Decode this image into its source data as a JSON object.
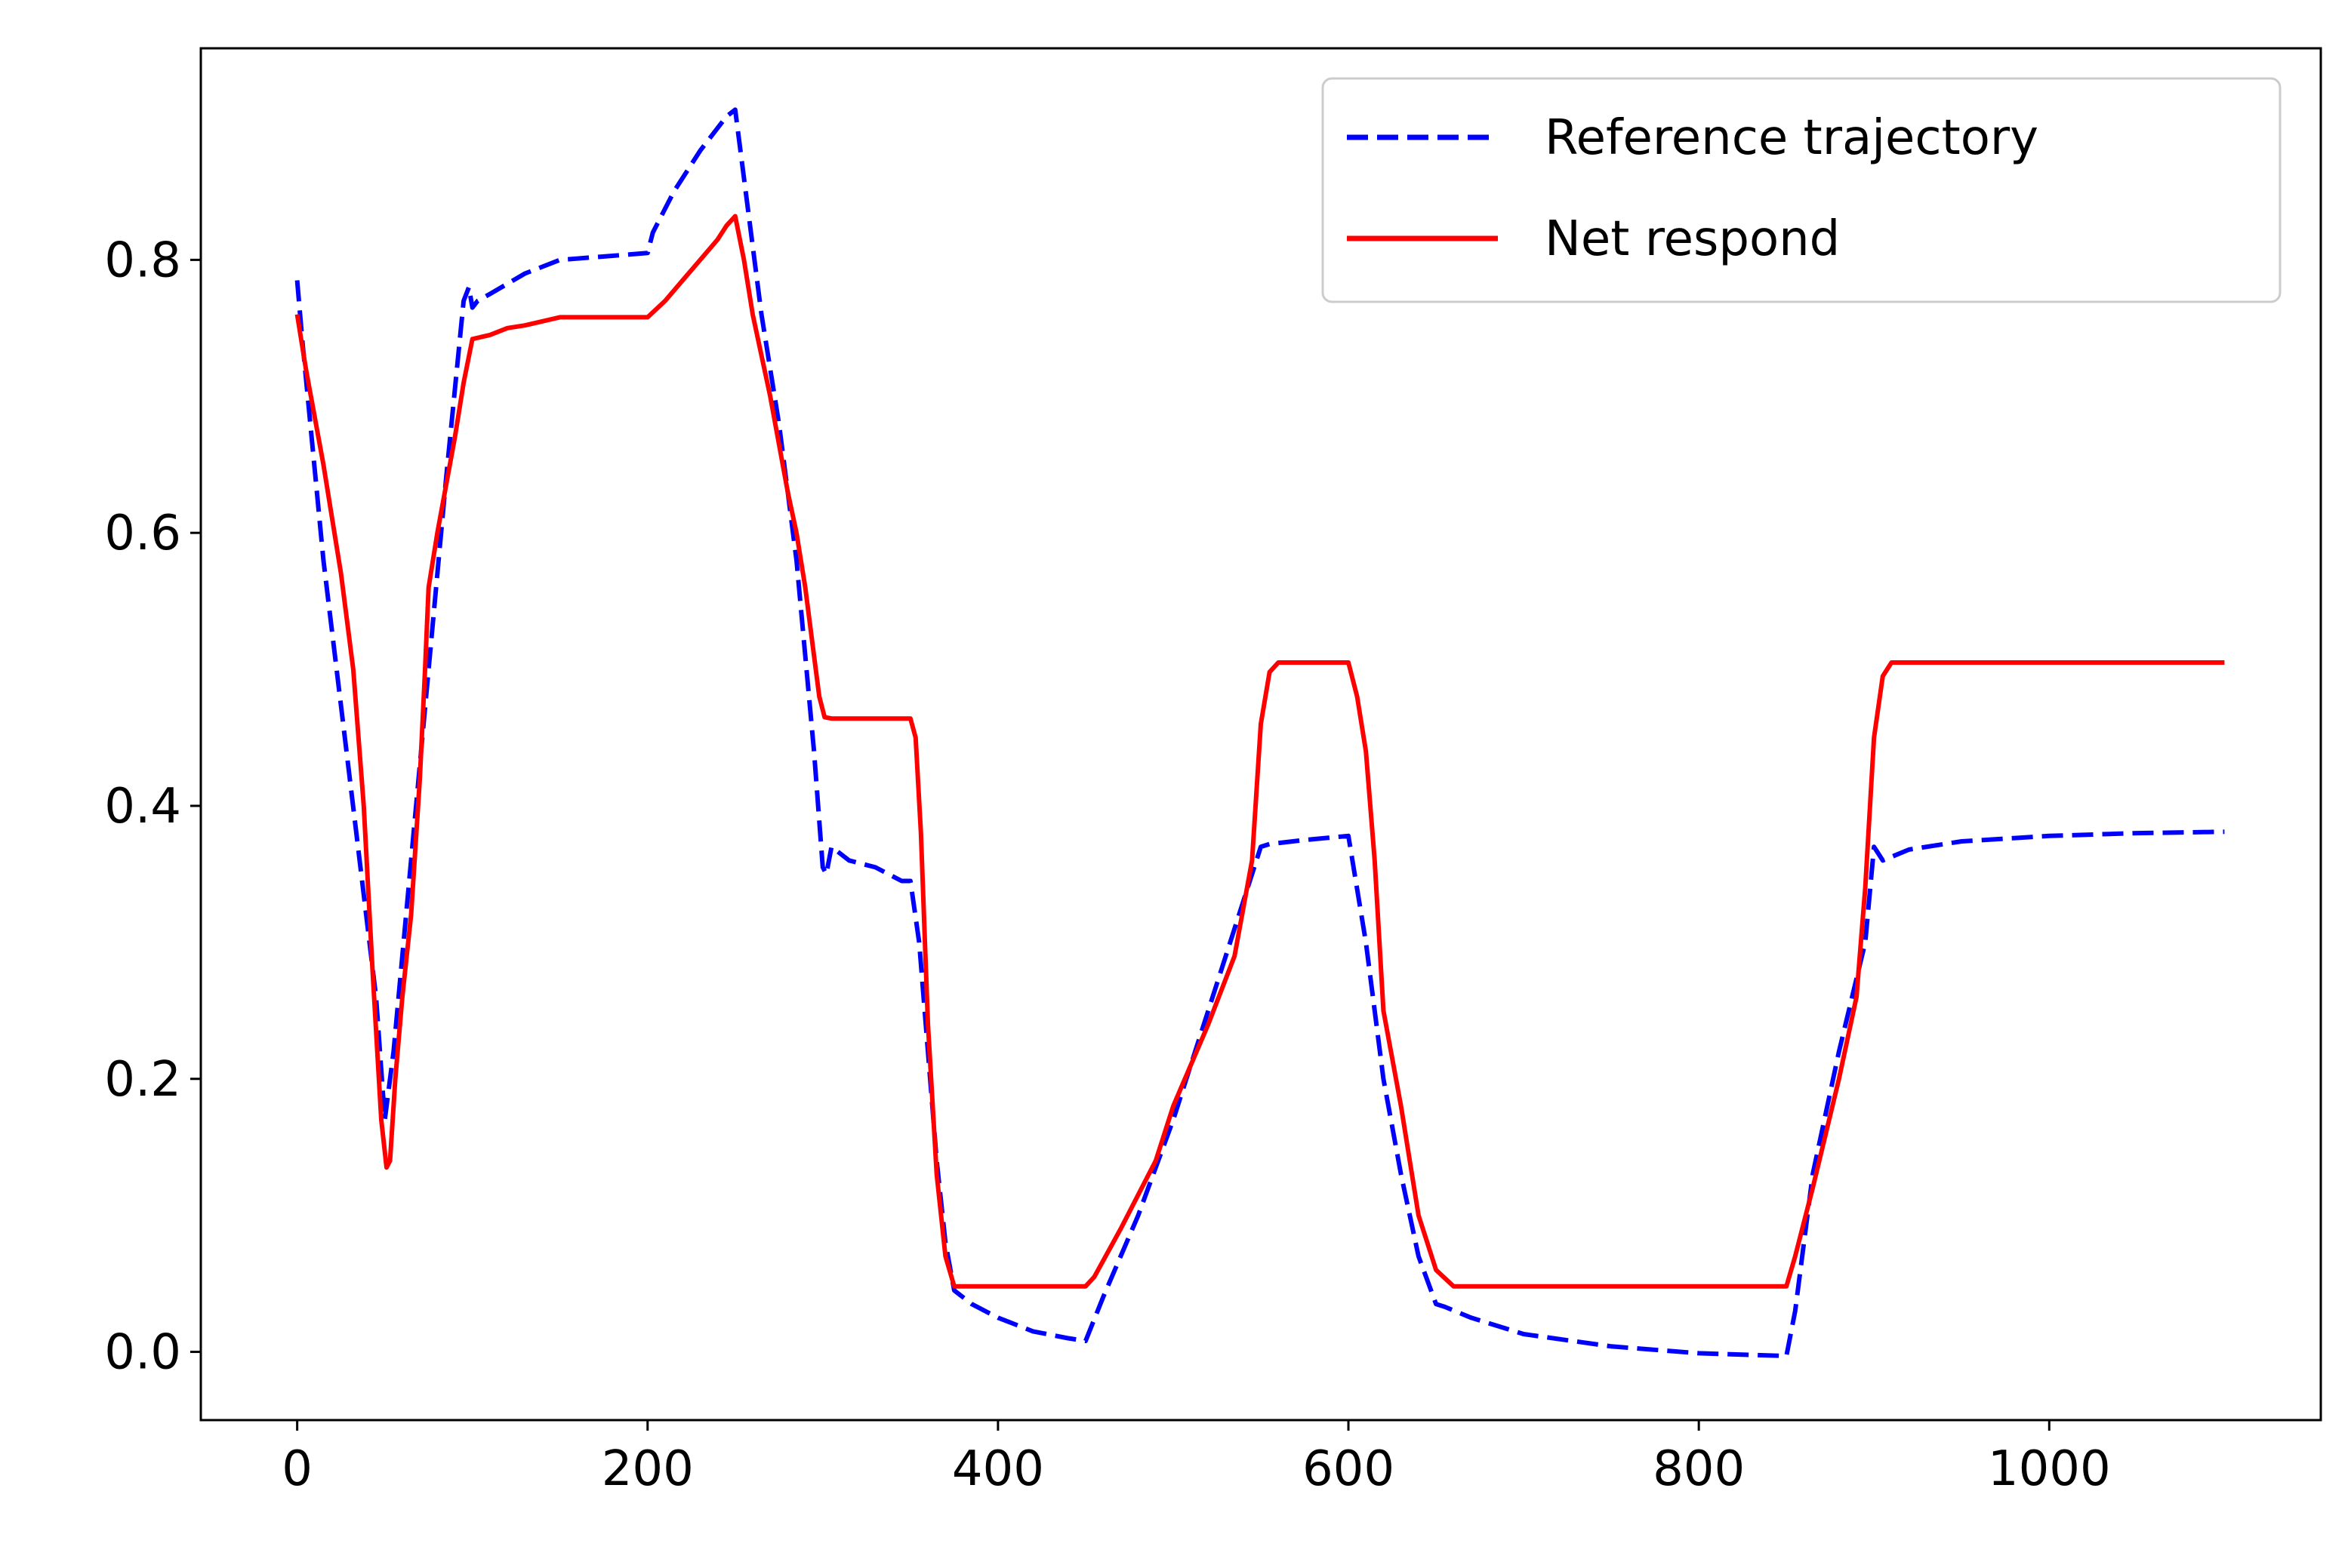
{
  "chart_data": {
    "type": "line",
    "title": "",
    "xlabel": "",
    "ylabel": "",
    "xlim": [
      -55,
      1155
    ],
    "ylim": [
      -0.05,
      0.955
    ],
    "xticks": [
      0,
      200,
      400,
      600,
      800,
      1000
    ],
    "xtick_labels": [
      "0",
      "200",
      "400",
      "600",
      "800",
      "1000"
    ],
    "yticks": [
      0.0,
      0.2,
      0.4,
      0.6,
      0.8
    ],
    "ytick_labels": [
      "0.0",
      "0.2",
      "0.4",
      "0.6",
      "0.8"
    ],
    "grid": false,
    "legend_position": "upper right",
    "series": [
      {
        "name": "Reference trajectory",
        "color": "#0000ff",
        "style": "dashed",
        "x": [
          0,
          3,
          15,
          30,
          45,
          50,
          55,
          65,
          75,
          85,
          95,
          98,
          100,
          103,
          110,
          130,
          150,
          180,
          200,
          203,
          215,
          230,
          245,
          250,
          255,
          265,
          275,
          285,
          290,
          295,
          300,
          302,
          305,
          315,
          330,
          345,
          350,
          355,
          360,
          365,
          370,
          375,
          385,
          400,
          420,
          440,
          450,
          460,
          480,
          500,
          520,
          540,
          550,
          555,
          575,
          600,
          610,
          620,
          630,
          640,
          650,
          655,
          670,
          700,
          750,
          800,
          850,
          855,
          865,
          880,
          895,
          900,
          905,
          920,
          950,
          1000,
          1050,
          1100
        ],
        "y": [
          0.785,
          0.74,
          0.58,
          0.42,
          0.26,
          0.17,
          0.22,
          0.36,
          0.5,
          0.64,
          0.77,
          0.78,
          0.765,
          0.77,
          0.775,
          0.79,
          0.8,
          0.803,
          0.805,
          0.82,
          0.85,
          0.88,
          0.905,
          0.91,
          0.86,
          0.76,
          0.68,
          0.58,
          0.51,
          0.44,
          0.355,
          0.35,
          0.37,
          0.36,
          0.355,
          0.345,
          0.345,
          0.3,
          0.22,
          0.14,
          0.08,
          0.045,
          0.035,
          0.025,
          0.015,
          0.01,
          0.008,
          0.04,
          0.1,
          0.17,
          0.25,
          0.33,
          0.37,
          0.372,
          0.375,
          0.378,
          0.3,
          0.2,
          0.13,
          0.07,
          0.035,
          0.033,
          0.025,
          0.013,
          0.004,
          -0.001,
          -0.003,
          0.03,
          0.13,
          0.22,
          0.3,
          0.37,
          0.36,
          0.368,
          0.374,
          0.378,
          0.38,
          0.381
        ]
      },
      {
        "name": "Net respond",
        "color": "#ff0000",
        "style": "solid",
        "x": [
          0,
          5,
          15,
          25,
          32,
          38,
          43,
          48,
          51,
          53,
          56,
          60,
          65,
          70,
          73,
          75,
          80,
          90,
          95,
          100,
          110,
          120,
          130,
          140,
          150,
          170,
          190,
          200,
          210,
          220,
          230,
          240,
          245,
          250,
          255,
          260,
          270,
          280,
          285,
          290,
          295,
          298,
          301,
          305,
          320,
          340,
          350,
          353,
          356,
          360,
          365,
          370,
          375,
          385,
          400,
          420,
          440,
          450,
          455,
          470,
          490,
          500,
          520,
          535,
          545,
          550,
          555,
          560,
          580,
          600,
          605,
          610,
          615,
          620,
          630,
          640,
          650,
          660,
          700,
          750,
          800,
          850,
          855,
          865,
          880,
          890,
          895,
          900,
          905,
          910,
          950,
          1000,
          1050,
          1100
        ],
        "y": [
          0.76,
          0.72,
          0.65,
          0.57,
          0.5,
          0.4,
          0.28,
          0.17,
          0.135,
          0.14,
          0.2,
          0.26,
          0.32,
          0.42,
          0.5,
          0.56,
          0.6,
          0.67,
          0.71,
          0.742,
          0.745,
          0.75,
          0.752,
          0.755,
          0.758,
          0.758,
          0.758,
          0.758,
          0.77,
          0.785,
          0.8,
          0.815,
          0.825,
          0.832,
          0.8,
          0.76,
          0.7,
          0.63,
          0.6,
          0.56,
          0.51,
          0.48,
          0.465,
          0.464,
          0.464,
          0.464,
          0.464,
          0.45,
          0.38,
          0.24,
          0.13,
          0.07,
          0.048,
          0.048,
          0.048,
          0.048,
          0.048,
          0.048,
          0.055,
          0.09,
          0.14,
          0.18,
          0.24,
          0.29,
          0.36,
          0.46,
          0.498,
          0.505,
          0.505,
          0.505,
          0.48,
          0.44,
          0.36,
          0.25,
          0.18,
          0.1,
          0.06,
          0.048,
          0.048,
          0.048,
          0.048,
          0.048,
          0.07,
          0.12,
          0.2,
          0.26,
          0.34,
          0.45,
          0.495,
          0.505,
          0.505,
          0.505,
          0.505,
          0.505
        ]
      }
    ]
  }
}
